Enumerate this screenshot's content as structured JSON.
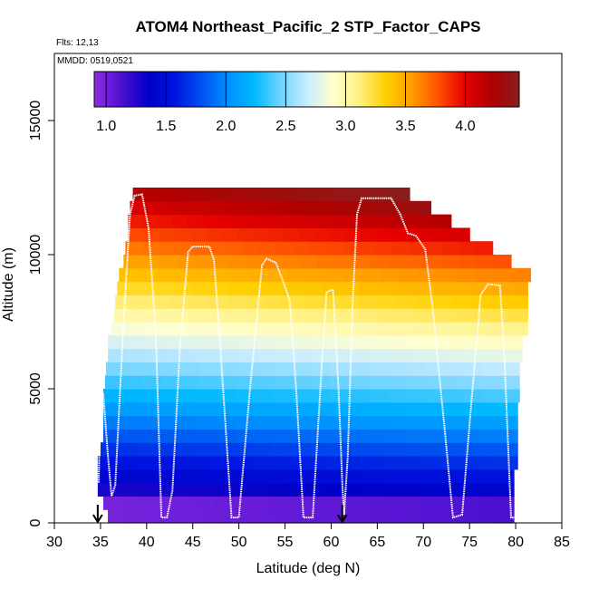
{
  "chart_data": {
    "type": "heatmap",
    "title": "ATOM4 Northeast_Pacific_2 STP_Factor_CAPS",
    "subtitle": "Flts: 12,13",
    "annotation": "MMDD: 0519,0521",
    "xlabel": "Latitude (deg N)",
    "ylabel": "Altitude (m)",
    "xlim": [
      30,
      85
    ],
    "ylim": [
      0,
      17500
    ],
    "x_ticks": [
      "30",
      "35",
      "40",
      "45",
      "50",
      "55",
      "60",
      "65",
      "70",
      "75",
      "80",
      "85"
    ],
    "y_ticks": [
      "0",
      "5000",
      "10000",
      "15000"
    ],
    "colorbar": {
      "range": [
        0.9,
        4.45
      ],
      "tick_labels": [
        "1.0",
        "1.5",
        "2.0",
        "2.5",
        "3.0",
        "3.5",
        "4.0"
      ],
      "colors": [
        "#8a2be2",
        "#4a0fd0",
        "#0000c8",
        "#0015e0",
        "#0050f0",
        "#0090ff",
        "#00b8ff",
        "#70d4ff",
        "#c8ecff",
        "#ffffd0",
        "#fff080",
        "#ffd000",
        "#ff9c00",
        "#ff5000",
        "#e60000",
        "#b00000",
        "#8c1c1c"
      ]
    },
    "band_height_m": 500,
    "curtain": [
      {
        "alt": 0,
        "lat_min": 35.8,
        "lat_max": 79.8
      },
      {
        "alt": 500,
        "lat_min": 35.3,
        "lat_max": 79.8
      },
      {
        "alt": 1000,
        "lat_min": 34.7,
        "lat_max": 79.8
      },
      {
        "alt": 1500,
        "lat_min": 34.7,
        "lat_max": 79.8
      },
      {
        "alt": 2000,
        "lat_min": 34.7,
        "lat_max": 80.2
      },
      {
        "alt": 2500,
        "lat_min": 35.0,
        "lat_max": 80.2
      },
      {
        "alt": 3000,
        "lat_min": 35.3,
        "lat_max": 80.2
      },
      {
        "alt": 3500,
        "lat_min": 35.3,
        "lat_max": 80.2
      },
      {
        "alt": 4000,
        "lat_min": 35.3,
        "lat_max": 80.2
      },
      {
        "alt": 4500,
        "lat_min": 35.3,
        "lat_max": 80.4
      },
      {
        "alt": 5000,
        "lat_min": 35.5,
        "lat_max": 80.4
      },
      {
        "alt": 5500,
        "lat_min": 35.6,
        "lat_max": 80.4
      },
      {
        "alt": 6000,
        "lat_min": 35.8,
        "lat_max": 80.7
      },
      {
        "alt": 6500,
        "lat_min": 35.8,
        "lat_max": 80.7
      },
      {
        "alt": 7000,
        "lat_min": 36.2,
        "lat_max": 81.3
      },
      {
        "alt": 7500,
        "lat_min": 36.5,
        "lat_max": 81.3
      },
      {
        "alt": 8000,
        "lat_min": 36.6,
        "lat_max": 81.3
      },
      {
        "alt": 8500,
        "lat_min": 36.8,
        "lat_max": 81.3
      },
      {
        "alt": 9000,
        "lat_min": 37.0,
        "lat_max": 81.6
      },
      {
        "alt": 9500,
        "lat_min": 37.5,
        "lat_max": 79.5
      },
      {
        "alt": 10000,
        "lat_min": 37.7,
        "lat_max": 77.5
      },
      {
        "alt": 10500,
        "lat_min": 38.0,
        "lat_max": 75.0
      },
      {
        "alt": 11000,
        "lat_min": 38.0,
        "lat_max": 73.0
      },
      {
        "alt": 11500,
        "lat_min": 38.2,
        "lat_max": 70.8
      },
      {
        "alt": 12000,
        "lat_min": 38.5,
        "lat_max": 68.5
      }
    ],
    "flight_track": [
      [
        34.8,
        1500
      ],
      [
        35.0,
        4900
      ],
      [
        35.3,
        4800
      ],
      [
        35.8,
        2500
      ],
      [
        36.2,
        1000
      ],
      [
        36.6,
        1400
      ],
      [
        37.5,
        7500
      ],
      [
        38.2,
        11500
      ],
      [
        38.7,
        12200
      ],
      [
        39.5,
        12250
      ],
      [
        40.2,
        11000
      ],
      [
        41.0,
        7000
      ],
      [
        41.6,
        200
      ],
      [
        42.2,
        200
      ],
      [
        42.8,
        1200
      ],
      [
        43.6,
        6500
      ],
      [
        44.5,
        10100
      ],
      [
        45.0,
        10300
      ],
      [
        46.8,
        10300
      ],
      [
        47.3,
        9800
      ],
      [
        48.0,
        6500
      ],
      [
        49.2,
        200
      ],
      [
        50.0,
        200
      ],
      [
        51.2,
        5000
      ],
      [
        52.5,
        9600
      ],
      [
        53.0,
        9850
      ],
      [
        54.0,
        9700
      ],
      [
        54.8,
        9000
      ],
      [
        55.5,
        8300
      ],
      [
        56.2,
        5000
      ],
      [
        57.0,
        200
      ],
      [
        58.0,
        200
      ],
      [
        59.0,
        6000
      ],
      [
        59.5,
        8600
      ],
      [
        60.2,
        8700
      ],
      [
        60.8,
        5000
      ],
      [
        61.2,
        1500
      ],
      [
        61.4,
        300
      ],
      [
        61.8,
        2500
      ],
      [
        62.3,
        8000
      ],
      [
        62.8,
        11500
      ],
      [
        63.3,
        12100
      ],
      [
        66.5,
        12100
      ],
      [
        67.5,
        11500
      ],
      [
        68.3,
        10800
      ],
      [
        69.2,
        10700
      ],
      [
        70.2,
        10200
      ],
      [
        71.0,
        8000
      ],
      [
        72.3,
        3500
      ],
      [
        73.2,
        200
      ],
      [
        74.2,
        300
      ],
      [
        75.2,
        4500
      ],
      [
        76.2,
        8500
      ],
      [
        77.0,
        8900
      ],
      [
        78.3,
        8850
      ],
      [
        78.8,
        6000
      ],
      [
        79.5,
        200
      ],
      [
        80.0,
        200
      ]
    ],
    "markers": [
      34.7,
      61.2
    ]
  }
}
